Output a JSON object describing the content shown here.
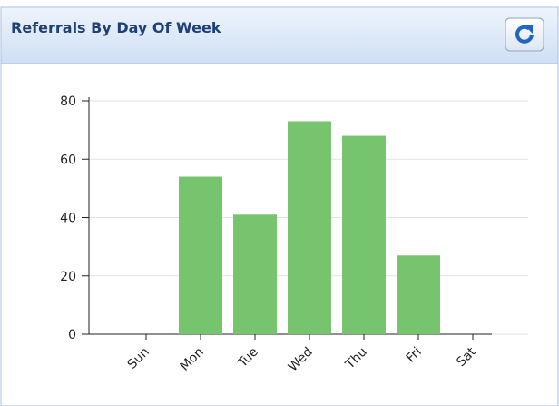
{
  "chart_data": {
    "type": "bar",
    "title": "Referrals By Day Of Week",
    "categories": [
      "Sun",
      "Mon",
      "Tue",
      "Wed",
      "Thu",
      "Fri",
      "Sat"
    ],
    "values": [
      0,
      54,
      41,
      73,
      68,
      27,
      0
    ],
    "color": "#77c46e",
    "ylim": [
      0,
      80
    ],
    "yticks": [
      0,
      20,
      40,
      60,
      80
    ],
    "grid": true
  }
}
